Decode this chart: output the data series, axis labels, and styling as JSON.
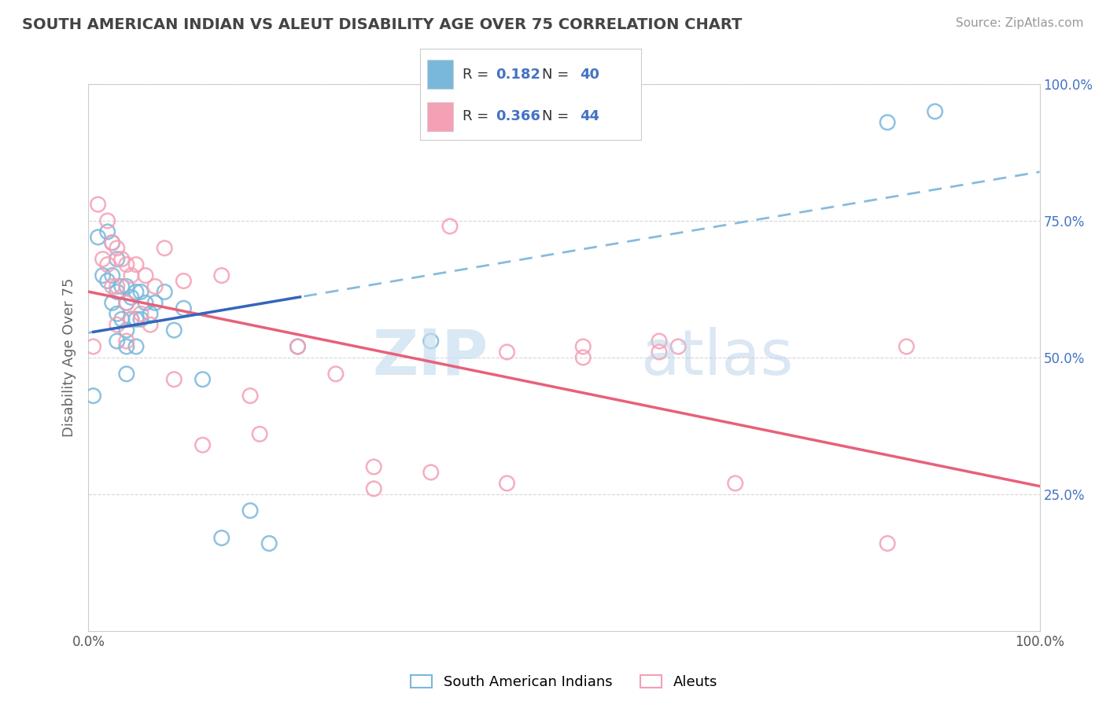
{
  "title": "SOUTH AMERICAN INDIAN VS ALEUT DISABILITY AGE OVER 75 CORRELATION CHART",
  "source": "Source: ZipAtlas.com",
  "ylabel": "Disability Age Over 75",
  "xmin": 0.0,
  "xmax": 1.0,
  "ymin": 0.0,
  "ymax": 1.0,
  "legend_labels": [
    "South American Indians",
    "Aleuts"
  ],
  "blue_R": 0.182,
  "blue_N": 40,
  "pink_R": 0.366,
  "pink_N": 44,
  "blue_color": "#7ab8db",
  "pink_color": "#f4a0b5",
  "blue_line_color": "#3366bb",
  "pink_line_color": "#e8607a",
  "blue_dash_color": "#88bbdd",
  "watermark_zip": "ZIP",
  "watermark_atlas": "atlas",
  "background_color": "#ffffff",
  "grid_color": "#cccccc",
  "blue_x": [
    0.005,
    0.01,
    0.015,
    0.02,
    0.02,
    0.025,
    0.025,
    0.025,
    0.03,
    0.03,
    0.03,
    0.03,
    0.035,
    0.035,
    0.04,
    0.04,
    0.04,
    0.04,
    0.04,
    0.045,
    0.045,
    0.05,
    0.05,
    0.05,
    0.055,
    0.055,
    0.06,
    0.065,
    0.07,
    0.08,
    0.09,
    0.1,
    0.12,
    0.14,
    0.17,
    0.19,
    0.22,
    0.36,
    0.84,
    0.89
  ],
  "blue_y": [
    0.43,
    0.72,
    0.65,
    0.64,
    0.73,
    0.71,
    0.65,
    0.6,
    0.68,
    0.62,
    0.58,
    0.53,
    0.63,
    0.57,
    0.63,
    0.6,
    0.55,
    0.52,
    0.47,
    0.61,
    0.57,
    0.62,
    0.57,
    0.52,
    0.62,
    0.57,
    0.6,
    0.58,
    0.6,
    0.62,
    0.55,
    0.59,
    0.46,
    0.17,
    0.22,
    0.16,
    0.52,
    0.53,
    0.93,
    0.95
  ],
  "pink_x": [
    0.005,
    0.01,
    0.015,
    0.02,
    0.02,
    0.025,
    0.025,
    0.03,
    0.03,
    0.03,
    0.035,
    0.04,
    0.04,
    0.04,
    0.045,
    0.045,
    0.05,
    0.055,
    0.06,
    0.065,
    0.07,
    0.08,
    0.09,
    0.1,
    0.12,
    0.14,
    0.17,
    0.18,
    0.22,
    0.26,
    0.3,
    0.36,
    0.38,
    0.44,
    0.52,
    0.6,
    0.62,
    0.68,
    0.84,
    0.86,
    0.52,
    0.6,
    0.3,
    0.44
  ],
  "pink_y": [
    0.52,
    0.78,
    0.68,
    0.75,
    0.67,
    0.71,
    0.63,
    0.7,
    0.63,
    0.56,
    0.68,
    0.67,
    0.6,
    0.53,
    0.65,
    0.57,
    0.67,
    0.58,
    0.65,
    0.56,
    0.63,
    0.7,
    0.46,
    0.64,
    0.34,
    0.65,
    0.43,
    0.36,
    0.52,
    0.47,
    0.26,
    0.29,
    0.74,
    0.27,
    0.52,
    0.53,
    0.52,
    0.27,
    0.16,
    0.52,
    0.5,
    0.51,
    0.3,
    0.51
  ]
}
